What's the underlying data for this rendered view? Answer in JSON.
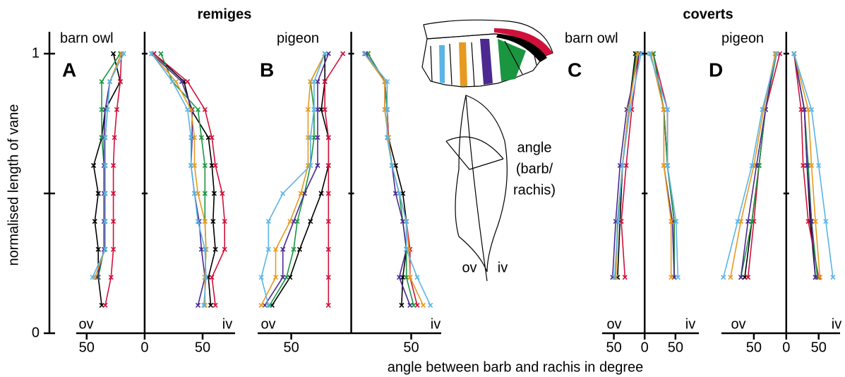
{
  "chart_data": {
    "type": "line",
    "y_label": "normalised length of vane",
    "x_label": "angle between barb and rachis in degree",
    "ylim": [
      0,
      1
    ],
    "yticks": [
      0,
      {
        "value": 0.5,
        "label": null
      },
      1
    ],
    "groups": [
      {
        "title": "remiges"
      },
      {
        "title": "coverts"
      }
    ],
    "feather_labels": {
      "angle": "angle",
      "barb": "(barb/",
      "rachis": "rachis)",
      "ov": "ov",
      "iv": "iv"
    },
    "panels": [
      {
        "letter": "A",
        "species": "barn owl",
        "ov_label": "ov",
        "iv_label": "iv",
        "xlim": [
          -59,
          78
        ],
        "xticks": [
          {
            "value": -50,
            "label": "50"
          },
          0,
          50
        ],
        "y": [
          1,
          0.9,
          0.8,
          0.7,
          0.6,
          0.5,
          0.4,
          0.3,
          0.2,
          0.1
        ],
        "series": [
          {
            "color": "#000000",
            "ov": [
              -27,
              -21,
              -34,
              -37,
              -44,
              -40,
              -43,
              -40,
              -40,
              -37
            ],
            "iv": [
              8,
              34,
              40,
              55,
              58,
              60,
              59,
              61,
              55,
              57
            ]
          },
          {
            "color": "#d0103a",
            "ov": [
              -20,
              -21,
              -24,
              -26,
              -27,
              -27,
              -27,
              -27,
              -29,
              -34
            ],
            "iv": [
              8,
              37,
              52,
              58,
              61,
              67,
              69,
              69,
              58,
              61
            ]
          },
          {
            "color": "#1a9641",
            "ov": [
              -21,
              -37,
              -37,
              -37,
              -35,
              -35,
              -35,
              -35,
              -40,
              null
            ],
            "iv": [
              14,
              24,
              46,
              49,
              52,
              52,
              52,
              53,
              52,
              52
            ]
          },
          {
            "color": "#4b2991",
            "ov": [
              -20,
              -30,
              -34,
              -35,
              -35,
              -35,
              -35,
              -35,
              -41,
              null
            ],
            "iv": [
              6,
              32,
              41,
              41,
              40,
              43,
              47,
              49,
              52,
              46
            ]
          },
          {
            "color": "#e69a1f",
            "ov": [
              -20,
              -30,
              -32,
              -34,
              -34,
              -34,
              -34,
              -34,
              -43,
              null
            ],
            "iv": [
              6,
              27,
              40,
              43,
              43,
              46,
              52,
              53,
              52,
              52
            ]
          },
          {
            "color": "#5ab4e5",
            "ov": [
              -18,
              -30,
              -32,
              -34,
              -34,
              -34,
              -34,
              -34,
              -45,
              null
            ],
            "iv": [
              6,
              24,
              37,
              40,
              40,
              43,
              46,
              52,
              53,
              51
            ]
          }
        ]
      },
      {
        "letter": "B",
        "species": "pigeon",
        "ov_label": "ov",
        "iv_label": "iv",
        "xlim": [
          -78,
          75
        ],
        "xticks": [
          {
            "value": -50,
            "label": "50"
          },
          50
        ],
        "y": [
          1,
          0.9,
          0.8,
          0.7,
          0.6,
          0.5,
          0.4,
          0.3,
          0.2,
          0.1
        ],
        "series": [
          {
            "color": "#000000",
            "ov": [
              -22,
              -22,
              -25,
              -19,
              -19,
              -25,
              -34,
              -43,
              -51,
              -66
            ],
            "iv": [
              14,
              28,
              30,
              31,
              37,
              43,
              46,
              46,
              43,
              42
            ]
          },
          {
            "color": "#d0103a",
            "ov": [
              -7,
              -22,
              -22,
              -19,
              -19,
              -19,
              -19,
              -19,
              -19,
              -19
            ],
            "iv": [
              14,
              28,
              30,
              31,
              34,
              40,
              46,
              49,
              49,
              55
            ]
          },
          {
            "color": "#1a9641",
            "ov": [
              -22,
              -34,
              -31,
              -31,
              -34,
              -39,
              -45,
              -48,
              -54,
              -68
            ],
            "iv": [
              14,
              28,
              30,
              30,
              34,
              40,
              43,
              46,
              46,
              52
            ]
          },
          {
            "color": "#4b2991",
            "ov": [
              -19,
              -28,
              -28,
              -28,
              -28,
              -39,
              -48,
              -57,
              -57,
              -72
            ],
            "iv": [
              12,
              28,
              28,
              31,
              34,
              37,
              43,
              46,
              40,
              49
            ]
          },
          {
            "color": "#e69a1f",
            "ov": [
              -22,
              -34,
              -36,
              -36,
              -36,
              -42,
              -51,
              -63,
              -63,
              -75
            ],
            "iv": [
              11,
              28,
              28,
              31,
              34,
              40,
              46,
              48,
              49,
              60
            ]
          },
          {
            "color": "#5ab4e5",
            "ov": [
              -22,
              -31,
              -31,
              -34,
              -34,
              -57,
              -69,
              -69,
              -75,
              -69
            ],
            "iv": [
              11,
              30,
              30,
              30,
              34,
              40,
              46,
              46,
              55,
              66
            ]
          }
        ]
      },
      {
        "letter": "C",
        "species": "barn owl",
        "ov_label": "ov",
        "iv_label": "iv",
        "xlim": [
          -69,
          88
        ],
        "xticks": [
          {
            "value": -50,
            "label": "50"
          },
          0,
          50
        ],
        "y": [
          1,
          0.8,
          0.6,
          0.4,
          0.2
        ],
        "series": [
          {
            "color": "#000000",
            "ov": [
              -15,
              -26,
              -36,
              -40,
              -44
            ],
            "iv": [
              14,
              31,
              37,
              48,
              48
            ]
          },
          {
            "color": "#d0103a",
            "ov": [
              -9,
              -21,
              -30,
              -38,
              -32
            ],
            "iv": [
              14,
              37,
              37,
              48,
              48
            ]
          },
          {
            "color": "#1a9641",
            "ov": [
              -13,
              -26,
              -36,
              -44,
              -47
            ],
            "iv": [
              14,
              31,
              37,
              48,
              48
            ]
          },
          {
            "color": "#4b2991",
            "ov": [
              -9,
              -29,
              -40,
              -47,
              -52
            ],
            "iv": [
              10,
              31,
              31,
              45,
              48
            ]
          },
          {
            "color": "#e69a1f",
            "ov": [
              -11,
              -26,
              -36,
              -43,
              -47
            ],
            "iv": [
              10,
              31,
              31,
              43,
              43
            ]
          },
          {
            "color": "#5ab4e5",
            "ov": [
              -6,
              -24,
              -36,
              -43,
              -49
            ],
            "iv": [
              8,
              37,
              37,
              51,
              54
            ]
          }
        ]
      },
      {
        "letter": "D",
        "species": "pigeon",
        "ov_label": "ov",
        "iv_label": "iv",
        "xlim": [
          -100,
          83
        ],
        "xticks": [
          {
            "value": -50,
            "label": "50"
          },
          0,
          50
        ],
        "y": [
          1,
          0.8,
          0.6,
          0.4,
          0.2
        ],
        "series": [
          {
            "color": "#000000",
            "ov": [
              -15,
              -32,
              -42,
              -53,
              -64
            ],
            "iv": [
              12,
              28,
              32,
              37,
              45
            ]
          },
          {
            "color": "#d0103a",
            "ov": [
              -10,
              -32,
              -42,
              -50,
              -59
            ],
            "iv": [
              12,
              23,
              26,
              34,
              50
            ]
          },
          {
            "color": "#1a9641",
            "ov": [
              -15,
              -32,
              -42,
              -53,
              -70
            ],
            "iv": [
              12,
              28,
              34,
              39,
              48
            ]
          },
          {
            "color": "#4b2991",
            "ov": [
              -17,
              -32,
              -46,
              -59,
              -70
            ],
            "iv": [
              12,
              28,
              32,
              39,
              45
            ]
          },
          {
            "color": "#e69a1f",
            "ov": [
              -17,
              -35,
              -50,
              -70,
              -86
            ],
            "iv": [
              12,
              34,
              39,
              45,
              52
            ]
          },
          {
            "color": "#5ab4e5",
            "ov": [
              -15,
              -37,
              -53,
              -75,
              -97
            ],
            "iv": [
              12,
              39,
              50,
              61,
              72
            ]
          }
        ]
      }
    ]
  }
}
